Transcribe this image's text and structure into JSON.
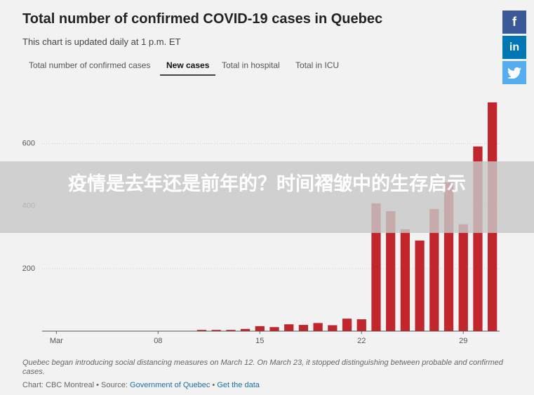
{
  "chart_data": {
    "type": "bar",
    "title": "Total number of confirmed COVID-19 cases in Quebec",
    "subtitle": "This chart is updated daily at 1 p.m. ET",
    "tabs": [
      "Total number of confirmed cases",
      "New cases",
      "Total in hospital",
      "Total in ICU"
    ],
    "active_tab": 1,
    "categories": [
      "Mar",
      null,
      null,
      null,
      null,
      null,
      null,
      "08",
      null,
      null,
      null,
      null,
      null,
      null,
      "15",
      null,
      null,
      null,
      null,
      null,
      null,
      "22",
      null,
      null,
      null,
      null,
      null,
      null,
      "29",
      null,
      null
    ],
    "values": [
      0,
      0,
      0,
      0,
      0,
      0,
      0,
      0,
      0,
      1,
      4,
      4,
      4,
      7,
      16,
      13,
      22,
      20,
      26,
      19,
      40,
      38,
      409,
      384,
      326,
      290,
      391,
      476,
      342,
      591,
      732
    ],
    "color": "#c0262c",
    "ylim": [
      0,
      770
    ],
    "yticks": [
      200,
      400,
      600
    ],
    "grid": true,
    "note": "Quebec began introducing social distancing measures on March 12. On March 23, it stopped distinguishing between probable and confirmed cases.",
    "source_prefix": "Chart: CBC Montreal • Source: ",
    "source_link": "Government of Quebec",
    "source_sep": " • ",
    "data_link": "Get the data"
  },
  "social": [
    "f",
    "in"
  ],
  "banner": "疫情是去年还是前年的？时间褶皱中的生存启示"
}
